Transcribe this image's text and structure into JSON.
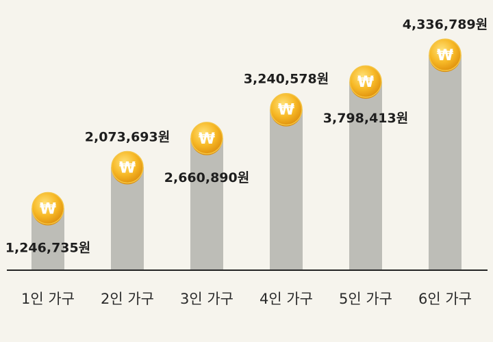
{
  "chart_data": {
    "type": "bar",
    "title": "",
    "xlabel": "",
    "ylabel": "",
    "categories": [
      "1인 가구",
      "2인 가구",
      "3인 가구",
      "4인 가구",
      "5인 가구",
      "6인 가구"
    ],
    "values": [
      1246735,
      2073693,
      2660890,
      3240578,
      3798413,
      4336789
    ],
    "value_labels": [
      "1,246,735원",
      "2,073,693원",
      "2,660,890원",
      "3,240,578원",
      "3,798,413원",
      "4,336,789원"
    ],
    "ylim": [
      0,
      4800000
    ],
    "grid": false,
    "legend": "none",
    "marker_icon": "won-coin-icon",
    "marker_glyph": "₩",
    "colors": {
      "bar": "#bdbdb7",
      "coin": "#f2b21c",
      "coin_rim": "#d98c0a",
      "axis": "#222222",
      "background": "#f6f4ed"
    }
  }
}
